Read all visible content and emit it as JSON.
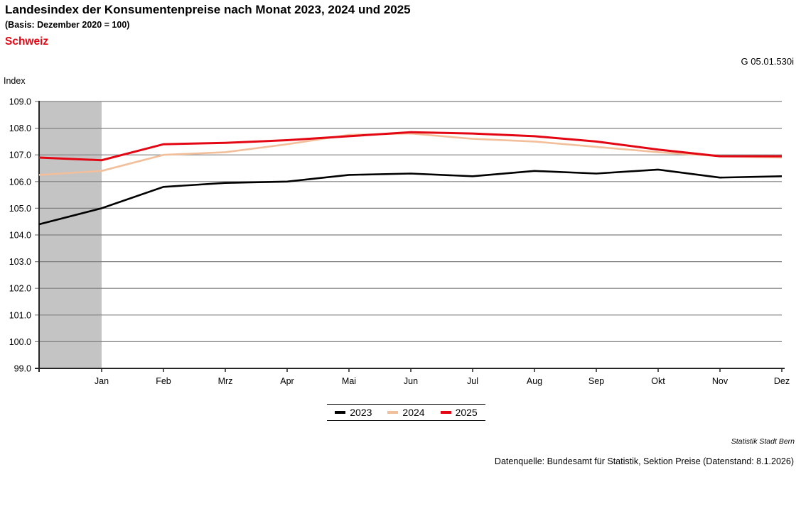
{
  "header": {
    "title": "Landesindex der Konsumentenpreise nach Monat 2023, 2024 und 2025",
    "subtitle": "(Basis: Dezember 2020 = 100)",
    "region": "Schweiz",
    "region_color": "#e30613",
    "figure_id": "G 05.01.530i"
  },
  "chart_data": {
    "type": "line",
    "title": "Landesindex der Konsumentenpreise nach Monat 2023, 2024 und 2025",
    "ylabel": "Index",
    "xlabel": "",
    "ylim": [
      99.0,
      109.0
    ],
    "ytick_step": 1.0,
    "grid": true,
    "legend_position": "bottom-center",
    "categories": [
      "",
      "Jan",
      "Feb",
      "Mrz",
      "Apr",
      "Mai",
      "Jun",
      "Jul",
      "Aug",
      "Sep",
      "Okt",
      "Nov",
      "Dez"
    ],
    "note_first_point": "unlabeled point before Jan (December of previous year), shaded gray",
    "highlight_band": {
      "from_index": 0,
      "to_index": 1,
      "color": "#c4c4c4"
    },
    "series": [
      {
        "name": "2023",
        "color": "#000000",
        "values": [
          104.4,
          105.0,
          105.8,
          105.95,
          106.0,
          106.25,
          106.3,
          106.2,
          106.4,
          106.3,
          106.45,
          106.15,
          106.2
        ]
      },
      {
        "name": "2024",
        "color": "#f3bf9b",
        "values": [
          106.25,
          106.4,
          107.0,
          107.1,
          107.4,
          107.75,
          107.8,
          107.6,
          107.5,
          107.3,
          107.1,
          106.95,
          106.9
        ]
      },
      {
        "name": "2025",
        "color": "#e30613",
        "values": [
          106.9,
          106.8,
          107.4,
          107.45,
          107.55,
          107.7,
          107.85,
          107.8,
          107.7,
          107.5,
          107.2,
          106.95,
          106.95
        ]
      }
    ],
    "colors": {
      "gridline": "#7f7f7f",
      "axis": "#262626",
      "band": "#c4c4c4"
    }
  },
  "footer": {
    "attribution": "Statistik Stadt Bern",
    "source": "Datenquelle: Bundesamt für Statistik, Sektion Preise (Datenstand: 8.1.2026)"
  }
}
